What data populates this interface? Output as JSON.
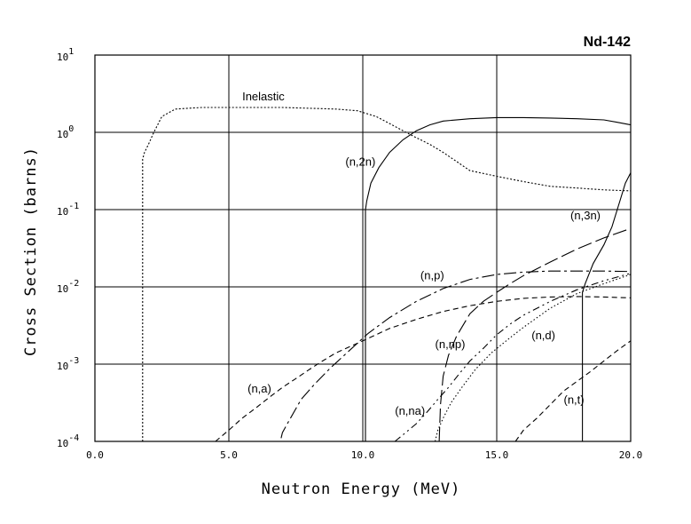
{
  "chart_data": {
    "type": "line",
    "title": "Nd-142",
    "xlabel": "Neutron Energy (MeV)",
    "ylabel": "Cross Section (barns)",
    "xlim": [
      0,
      20
    ],
    "ylim": [
      0.0001,
      10
    ],
    "yscale": "log",
    "grid": true,
    "x_ticks": [
      "0.0",
      "5.0",
      "10.0",
      "15.0",
      "20.0"
    ],
    "y_ticks": [
      {
        "base": "10",
        "exp": "-4"
      },
      {
        "base": "10",
        "exp": "-3"
      },
      {
        "base": "10",
        "exp": "-2"
      },
      {
        "base": "10",
        "exp": "-1"
      },
      {
        "base": "10",
        "exp": "0"
      },
      {
        "base": "10",
        "exp": "1"
      }
    ],
    "series": [
      {
        "name": "Inelastic",
        "dash": "2,2",
        "label_at": [
          5.5,
          2.6
        ],
        "x": [
          1.78,
          1.78,
          1.85,
          2.0,
          2.2,
          2.5,
          3.0,
          4.0,
          5.0,
          6.0,
          7.0,
          8.0,
          9.0,
          9.8,
          10.5,
          11.0,
          11.5,
          12.0,
          12.5,
          13.0,
          13.5,
          14.0,
          15.0,
          16.0,
          17.0,
          18.0,
          19.0,
          20.0
        ],
        "y": [
          0.0001,
          0.45,
          0.55,
          0.7,
          1.0,
          1.6,
          2.0,
          2.1,
          2.1,
          2.1,
          2.1,
          2.05,
          2.0,
          1.9,
          1.6,
          1.3,
          1.05,
          0.85,
          0.7,
          0.55,
          0.42,
          0.32,
          0.27,
          0.23,
          0.2,
          0.19,
          0.18,
          0.175
        ]
      },
      {
        "name": "(n,2n)",
        "dash": "",
        "label_at": [
          9.35,
          0.37
        ],
        "x": [
          10.1,
          10.1,
          10.15,
          10.3,
          10.6,
          11.0,
          11.5,
          12.0,
          12.5,
          13.0,
          14.0,
          15.0,
          16.0,
          17.0,
          18.0,
          19.0,
          19.5,
          20.0
        ],
        "y": [
          0.0001,
          0.1,
          0.13,
          0.22,
          0.35,
          0.55,
          0.8,
          1.05,
          1.25,
          1.4,
          1.5,
          1.55,
          1.55,
          1.53,
          1.5,
          1.45,
          1.35,
          1.25
        ]
      },
      {
        "name": "(n,3n)",
        "dash": "",
        "label_at": [
          17.75,
          0.075
        ],
        "x": [
          18.2,
          18.2,
          18.3,
          18.6,
          19.0,
          19.3,
          19.6,
          19.8,
          20.0
        ],
        "y": [
          0.0001,
          0.0085,
          0.011,
          0.02,
          0.035,
          0.06,
          0.13,
          0.22,
          0.3
        ]
      },
      {
        "name": "(n,p)",
        "dash": "14,4,3,4",
        "label_at": [
          12.15,
          0.0125
        ],
        "x": [
          6.95,
          7.0,
          7.3,
          7.7,
          8.2,
          8.8,
          9.5,
          10.2,
          11.0,
          12.0,
          13.0,
          14.0,
          15.0,
          16.0,
          17.0,
          18.0,
          19.0,
          20.0
        ],
        "y": [
          0.00011,
          0.00013,
          0.0002,
          0.00035,
          0.00055,
          0.0009,
          0.0015,
          0.0025,
          0.004,
          0.0065,
          0.0095,
          0.0125,
          0.0145,
          0.0155,
          0.016,
          0.016,
          0.016,
          0.0158
        ]
      },
      {
        "name": "(n,a)",
        "dash": "6,4",
        "label_at": [
          5.7,
          0.00043
        ],
        "x": [
          4.5,
          5.0,
          5.5,
          6.0,
          6.5,
          7.0,
          7.5,
          8.0,
          8.5,
          9.0,
          10.0,
          11.0,
          12.0,
          13.0,
          14.0,
          15.0,
          16.0,
          17.0,
          18.0,
          19.0,
          20.0
        ],
        "y": [
          0.0001,
          0.00014,
          0.0002,
          0.00027,
          0.00037,
          0.0005,
          0.00065,
          0.00085,
          0.0011,
          0.0014,
          0.002,
          0.0029,
          0.0038,
          0.0048,
          0.0057,
          0.0065,
          0.0071,
          0.0074,
          0.0075,
          0.0074,
          0.0072
        ]
      },
      {
        "name": "(n,np)",
        "dash": "16,5",
        "label_at": [
          12.7,
          0.0016
        ],
        "x": [
          12.85,
          12.9,
          13.0,
          13.2,
          13.5,
          14.0,
          14.5,
          15.0,
          15.5,
          16.0,
          17.0,
          18.0,
          19.0,
          20.0
        ],
        "y": [
          0.0001,
          0.0003,
          0.0007,
          0.0013,
          0.0023,
          0.0045,
          0.0065,
          0.0085,
          0.011,
          0.014,
          0.021,
          0.031,
          0.043,
          0.057
        ]
      },
      {
        "name": "(n,na)",
        "dash": "8,4,2,4,2,4",
        "label_at": [
          11.2,
          0.00022
        ],
        "x": [
          11.2,
          11.6,
          12.0,
          12.4,
          12.8,
          13.2,
          13.6,
          14.0,
          14.5,
          15.0,
          15.5,
          16.0,
          17.0,
          18.0,
          19.0,
          20.0
        ],
        "y": [
          0.0001,
          0.00013,
          0.00017,
          0.00024,
          0.00035,
          0.0005,
          0.00075,
          0.0011,
          0.0016,
          0.0024,
          0.0033,
          0.0043,
          0.0065,
          0.0092,
          0.012,
          0.015
        ]
      },
      {
        "name": "(n,d)",
        "dash": "1.5,2.5",
        "label_at": [
          16.3,
          0.0021
        ],
        "x": [
          12.7,
          12.8,
          13.0,
          13.3,
          13.7,
          14.2,
          14.8,
          15.5,
          16.0,
          17.0,
          18.0,
          19.0,
          20.0
        ],
        "y": [
          0.0001,
          0.00014,
          0.0002,
          0.00032,
          0.0005,
          0.00085,
          0.0014,
          0.0022,
          0.003,
          0.0053,
          0.0082,
          0.011,
          0.0145
        ]
      },
      {
        "name": "(n,t)",
        "dash": "6,4",
        "label_at": [
          17.5,
          0.00031
        ],
        "x": [
          15.7,
          16.0,
          16.5,
          17.0,
          17.5,
          18.0,
          18.5,
          19.0,
          19.5,
          20.0
        ],
        "y": [
          0.0001,
          0.00014,
          0.0002,
          0.0003,
          0.00045,
          0.0006,
          0.0008,
          0.0011,
          0.0015,
          0.002
        ]
      }
    ]
  }
}
